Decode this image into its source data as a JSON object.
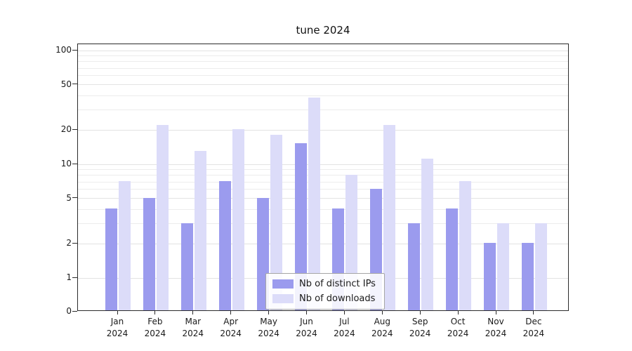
{
  "title": "tune 2024",
  "chart_data": {
    "type": "bar",
    "title": "tune 2024",
    "scale": "log",
    "grid": true,
    "ylim": [
      0,
      100
    ],
    "y_ticks": [
      0,
      1,
      2,
      5,
      10,
      20,
      50,
      100
    ],
    "y_minor_gridlines": [
      3,
      4,
      6,
      7,
      8,
      9,
      30,
      40,
      60,
      70,
      80,
      90
    ],
    "categories": [
      "Jan 2024",
      "Feb 2024",
      "Mar 2024",
      "Apr 2024",
      "May 2024",
      "Jun 2024",
      "Jul 2024",
      "Aug 2024",
      "Sep 2024",
      "Oct 2024",
      "Nov 2024",
      "Dec 2024"
    ],
    "series": [
      {
        "name": "Nb of distinct IPs",
        "color": "#9b9bee",
        "values": [
          4,
          5,
          3,
          7,
          5,
          15,
          4,
          6,
          3,
          4,
          2,
          2
        ]
      },
      {
        "name": "Nb of downloads",
        "color": "#dcdcf9",
        "values": [
          7,
          22,
          13,
          20,
          18,
          38,
          8,
          22,
          11,
          7,
          3,
          3
        ]
      }
    ],
    "legend_position": "lower center",
    "gridline_color": "#ececec",
    "major_gridline_color": "#e3e3e3"
  }
}
